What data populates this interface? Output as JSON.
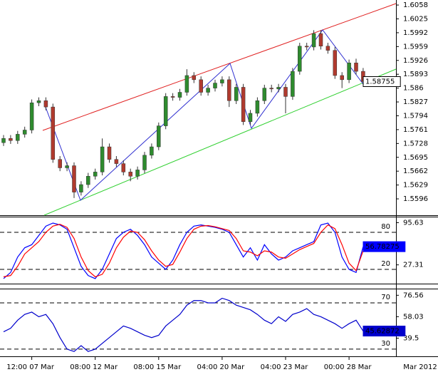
{
  "chart_data": [
    {
      "type": "candlestick",
      "categories": [
        null,
        null,
        null,
        null,
        "12:00 07 Mar",
        null,
        null,
        null,
        null,
        null,
        null,
        null,
        null,
        "08:00 12 Mar",
        null,
        null,
        null,
        null,
        null,
        null,
        null,
        null,
        "08:00 15 Mar",
        null,
        null,
        null,
        null,
        null,
        null,
        null,
        null,
        "04:00 20 Mar",
        null,
        null,
        null,
        null,
        null,
        null,
        null,
        null,
        "04:00 23 Mar",
        null,
        null,
        null,
        null,
        null,
        null,
        null,
        null,
        "00:00 28 Mar",
        null,
        null
      ],
      "period_label": "Mar 2012",
      "open": [
        1.573,
        1.574,
        1.5735,
        1.575,
        1.576,
        1.5825,
        1.583,
        1.5815,
        1.569,
        1.567,
        1.5675,
        1.5612,
        1.563,
        1.565,
        1.566,
        1.572,
        1.569,
        1.568,
        1.566,
        1.565,
        1.5665,
        1.57,
        1.572,
        1.577,
        1.584,
        1.5838,
        1.585,
        1.589,
        1.588,
        1.585,
        1.586,
        1.5872,
        1.588,
        1.583,
        1.5862,
        1.578,
        1.58,
        1.583,
        1.586,
        1.5858,
        1.5862,
        1.584,
        1.59,
        1.596,
        1.5958,
        1.599,
        1.596,
        1.595,
        1.589,
        1.588,
        1.592,
        1.59
      ],
      "high": [
        1.5748,
        1.5748,
        1.5758,
        1.5768,
        1.5833,
        1.5838,
        1.5838,
        1.5823,
        1.5698,
        1.5683,
        1.5683,
        1.5638,
        1.5658,
        1.5668,
        1.574,
        1.5728,
        1.5698,
        1.5688,
        1.5668,
        1.5673,
        1.5708,
        1.5728,
        1.5778,
        1.5848,
        1.5848,
        1.5858,
        1.5905,
        1.5898,
        1.5888,
        1.5868,
        1.588,
        1.5888,
        1.5888,
        1.587,
        1.587,
        1.5808,
        1.5838,
        1.5868,
        1.5868,
        1.587,
        1.587,
        1.5908,
        1.5968,
        1.5968,
        1.5998,
        1.5998,
        1.5968,
        1.5958,
        1.5898,
        1.5928,
        1.593,
        1.5908
      ],
      "low": [
        1.5722,
        1.5727,
        1.5727,
        1.5742,
        1.5752,
        1.5817,
        1.5807,
        1.5682,
        1.5662,
        1.5662,
        1.5598,
        1.5604,
        1.5622,
        1.5642,
        1.5652,
        1.5682,
        1.5672,
        1.5652,
        1.5638,
        1.5642,
        1.5657,
        1.5692,
        1.5712,
        1.5762,
        1.583,
        1.583,
        1.5842,
        1.5872,
        1.5842,
        1.5842,
        1.5852,
        1.5864,
        1.5815,
        1.5822,
        1.5772,
        1.5772,
        1.5792,
        1.5822,
        1.585,
        1.585,
        1.58,
        1.5832,
        1.5892,
        1.595,
        1.595,
        1.5952,
        1.5942,
        1.5882,
        1.586,
        1.5872,
        1.5892,
        1.5868
      ],
      "close": [
        1.574,
        1.5735,
        1.575,
        1.576,
        1.5825,
        1.583,
        1.5815,
        1.569,
        1.567,
        1.5675,
        1.5612,
        1.563,
        1.565,
        1.566,
        1.572,
        1.569,
        1.568,
        1.566,
        1.565,
        1.5665,
        1.57,
        1.572,
        1.577,
        1.584,
        1.5838,
        1.585,
        1.589,
        1.588,
        1.585,
        1.586,
        1.5872,
        1.588,
        1.583,
        1.5862,
        1.578,
        1.58,
        1.583,
        1.586,
        1.5858,
        1.5862,
        1.584,
        1.59,
        1.596,
        1.5958,
        1.599,
        1.596,
        1.595,
        1.589,
        1.588,
        1.592,
        1.59,
        1.58755
      ],
      "up_color": "#2e8b2e",
      "down_color": "#b03a2e",
      "ylim": [
        1.5557,
        1.607
      ],
      "yticks": [
        1.6058,
        1.6025,
        1.5992,
        1.5959,
        1.5926,
        1.5893,
        1.586,
        1.5827,
        1.5794,
        1.5761,
        1.5728,
        1.5695,
        1.5662,
        1.5629,
        1.5596
      ]
    },
    {
      "type": "line",
      "series": [
        {
          "color": "#0000ff",
          "values": [
            5,
            15,
            40,
            55,
            60,
            75,
            90,
            95,
            92,
            85,
            55,
            25,
            10,
            5,
            20,
            45,
            70,
            80,
            85,
            75,
            60,
            40,
            30,
            20,
            35,
            60,
            80,
            90,
            92,
            90,
            88,
            85,
            80,
            60,
            40,
            55,
            35,
            60,
            45,
            35,
            40,
            50,
            55,
            60,
            65,
            92,
            95,
            80,
            40,
            20,
            15,
            56.78275
          ]
        },
        {
          "color": "#ff0000",
          "values": [
            8,
            10,
            25,
            45,
            55,
            65,
            80,
            90,
            93,
            88,
            70,
            40,
            18,
            8,
            12,
            30,
            55,
            72,
            82,
            80,
            68,
            50,
            35,
            25,
            28,
            48,
            70,
            85,
            90,
            91,
            89,
            86,
            83,
            70,
            50,
            48,
            42,
            50,
            48,
            40,
            38,
            45,
            52,
            57,
            62,
            80,
            92,
            86,
            60,
            30,
            18,
            50
          ]
        }
      ],
      "levels": [
        80,
        20
      ],
      "ylim": [
        -3.1,
        105.4
      ],
      "yticks": [
        95.63,
        27.31
      ]
    },
    {
      "type": "line",
      "series": [
        {
          "color": "#0000cc",
          "values": [
            45,
            48,
            55,
            60,
            62,
            58,
            60,
            52,
            40,
            30,
            28,
            33,
            28,
            30,
            35,
            40,
            45,
            50,
            48,
            45,
            42,
            40,
            42,
            50,
            55,
            60,
            68,
            72,
            72,
            70,
            70,
            74,
            72,
            68,
            66,
            64,
            60,
            55,
            52,
            58,
            54,
            60,
            62,
            65,
            60,
            58,
            55,
            52,
            48,
            52,
            55,
            45.62872
          ]
        }
      ],
      "levels": [
        70,
        30
      ],
      "ylim": [
        23.8,
        82.3
      ],
      "yticks": [
        76.56,
        58.03,
        39.5
      ]
    }
  ]
}
